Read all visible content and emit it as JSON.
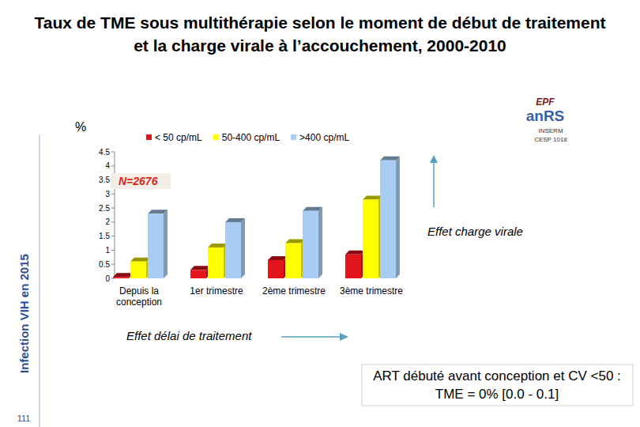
{
  "chart_data": {
    "type": "bar",
    "title": "Taux de TME sous multithérapie selon le moment de début de traitement et la charge virale à l’accouchement, 2000-2010",
    "ylabel": "%",
    "categories": [
      "Depuis la conception",
      "1er trimestre",
      "2ème trimestre",
      "3ème trimestre"
    ],
    "series": [
      {
        "name": "< 50 cp/mL",
        "color": "#e2141c",
        "values": [
          0.05,
          0.3,
          0.65,
          0.85
        ]
      },
      {
        "name": "50-400 cp/mL",
        "color": "#ffff00",
        "values": [
          0.6,
          1.1,
          1.25,
          2.8
        ]
      },
      {
        "name": ">400 cp/mL",
        "color": "#a9cdf2",
        "values": [
          2.3,
          2.0,
          2.4,
          4.2
        ]
      }
    ],
    "ylim": [
      0,
      4.5
    ],
    "yticks": [
      0,
      0.5,
      1,
      1.5,
      2,
      2.5,
      3,
      3.5,
      4,
      4.5
    ],
    "grid": false,
    "legend": "top",
    "annotations": [
      "N=2676",
      "Effet charge virale",
      "Effet délai de traitement",
      "ART débuté avant conception et CV <50 : TME = 0% [0.0 - 0.1]"
    ]
  },
  "page": {
    "side_label": "Infection VIH en 2015",
    "page_number": "111"
  },
  "logo": {
    "epf": "EPF",
    "anrs": "anRS",
    "org": "INSERM",
    "unit": "CESP 1018"
  }
}
